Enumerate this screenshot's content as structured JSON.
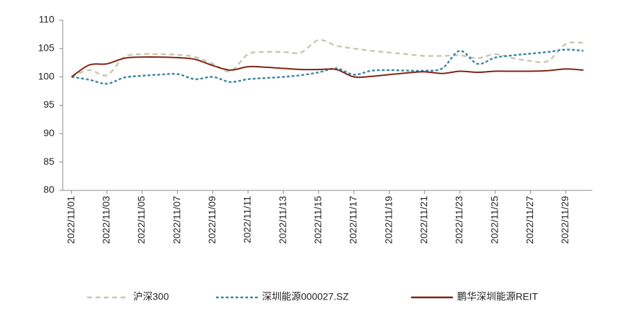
{
  "chart_data": {
    "type": "line",
    "categories": [
      "2022/11/01",
      null,
      "2022/11/03",
      null,
      "2022/11/05",
      null,
      "2022/11/07",
      null,
      "2022/11/09",
      null,
      "2022/11/11",
      null,
      "2022/11/13",
      null,
      "2022/11/15",
      null,
      "2022/11/17",
      null,
      "2022/11/19",
      null,
      "2022/11/21",
      null,
      "2022/11/23",
      null,
      "2022/11/25",
      null,
      "2022/11/27",
      null,
      "2022/11/29",
      null
    ],
    "series": [
      {
        "name": "沪深300",
        "color": "#c9c6b1",
        "dash": "7,5",
        "values": [
          100,
          101.2,
          100.3,
          103.5,
          104,
          104,
          103.9,
          103.5,
          102.3,
          101,
          104,
          104.4,
          104.4,
          104.3,
          106.5,
          105.5,
          105,
          104.6,
          104.3,
          104,
          103.7,
          103.7,
          103.8,
          103.3,
          104,
          103.3,
          102.8,
          102.8,
          105.8,
          106
        ]
      },
      {
        "name": "深圳能源000027.SZ",
        "color": "#3a86a5",
        "dash": "4,3",
        "values": [
          100,
          99.5,
          98.8,
          99.9,
          100.2,
          100.4,
          100.5,
          99.6,
          100,
          99.1,
          99.6,
          99.8,
          100,
          100.3,
          100.8,
          101.5,
          100.4,
          101.1,
          101.2,
          101.1,
          101.1,
          101.5,
          104.6,
          102.3,
          103.4,
          103.8,
          104.1,
          104.4,
          104.8,
          104.6
        ]
      },
      {
        "name": "鹏华深圳能源REIT",
        "color": "#7f2010",
        "dash": null,
        "values": [
          100,
          102.1,
          102.3,
          103.3,
          103.5,
          103.5,
          103.4,
          103.1,
          102,
          101.2,
          101.8,
          101.7,
          101.5,
          101.3,
          101.3,
          101.3,
          100,
          100.1,
          100.4,
          100.7,
          100.9,
          100.6,
          101,
          100.8,
          101,
          101,
          101,
          101.1,
          101.4,
          101.2
        ]
      }
    ],
    "ylim": [
      80,
      110
    ],
    "yticks": [
      80,
      85,
      90,
      95,
      100,
      105,
      110
    ]
  }
}
